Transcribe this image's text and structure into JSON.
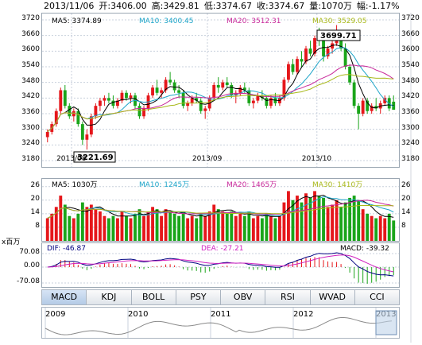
{
  "header": {
    "date": "2013/11/06",
    "open": "开:3406.00",
    "high": "高:3429.81",
    "low": "低:3374.67",
    "close": "收:3374.67",
    "volume": "量:1070万",
    "change": "幅:-1.17%"
  },
  "colors": {
    "up": "#e5171b",
    "down": "#1aa51a",
    "ma5": "#000000",
    "ma10": "#1ca4c8",
    "ma20": "#c8289a",
    "ma30": "#a8b818",
    "dif": "#000080",
    "dea": "#d020c0",
    "grid": "#c8d0dc"
  },
  "main": {
    "legend": {
      "ma5": "MA5: 3374.89",
      "ma10": "MA10: 3400.45",
      "ma20": "MA20: 3512.31",
      "ma30": "MA30: 3529.05"
    },
    "y_ticks": [
      "3720",
      "3660",
      "3600",
      "3540",
      "3480",
      "3420",
      "3360",
      "3300",
      "3240",
      "3180"
    ],
    "x_labels": [
      "2013/08",
      "2013/09",
      "2013/10"
    ],
    "high_label": "3699.71",
    "low_label": "3221.69"
  },
  "volume": {
    "legend": {
      "ma5": "MA5: 1030万",
      "ma10": "MA10: 1245万",
      "ma20": "MA20: 1465万",
      "ma30": "MA30: 1410万"
    },
    "y_ticks": [
      "26",
      "20",
      "14",
      "8"
    ]
  },
  "macd": {
    "unit": "x百万",
    "legend": {
      "dif": "DIF: -46.87",
      "dea": "DEA: -27.21",
      "macd": "MACD: -39.32"
    },
    "y_ticks": [
      "70.08",
      "0.00",
      "-70.08"
    ]
  },
  "tabs": [
    "MACD",
    "KDJ",
    "BOLL",
    "PSY",
    "OBV",
    "RSI",
    "WVAD",
    "CCI"
  ],
  "overview": {
    "years": [
      "2009",
      "2010",
      "2011",
      "2012",
      "2013"
    ]
  },
  "chart_data": {
    "type": "candlestick",
    "ylim": [
      3180,
      3720
    ],
    "x_labels": [
      "2013/08",
      "2013/09",
      "2013/10"
    ],
    "candles": [
      [
        3270,
        3300,
        3250,
        3290
      ],
      [
        3290,
        3330,
        3280,
        3320
      ],
      [
        3320,
        3380,
        3310,
        3370
      ],
      [
        3370,
        3460,
        3360,
        3450
      ],
      [
        3450,
        3470,
        3380,
        3390
      ],
      [
        3390,
        3400,
        3340,
        3350
      ],
      [
        3350,
        3380,
        3330,
        3370
      ],
      [
        3370,
        3380,
        3310,
        3320
      ],
      [
        3320,
        3330,
        3240,
        3260
      ],
      [
        3260,
        3300,
        3222,
        3280
      ],
      [
        3280,
        3360,
        3270,
        3350
      ],
      [
        3350,
        3400,
        3340,
        3390
      ],
      [
        3390,
        3420,
        3370,
        3410
      ],
      [
        3410,
        3430,
        3390,
        3420
      ],
      [
        3420,
        3440,
        3400,
        3410
      ],
      [
        3410,
        3430,
        3380,
        3390
      ],
      [
        3390,
        3420,
        3380,
        3410
      ],
      [
        3410,
        3450,
        3400,
        3440
      ],
      [
        3440,
        3450,
        3410,
        3420
      ],
      [
        3420,
        3440,
        3400,
        3430
      ],
      [
        3430,
        3440,
        3380,
        3390
      ],
      [
        3390,
        3400,
        3340,
        3350
      ],
      [
        3350,
        3390,
        3340,
        3380
      ],
      [
        3380,
        3440,
        3370,
        3430
      ],
      [
        3430,
        3470,
        3420,
        3460
      ],
      [
        3460,
        3490,
        3430,
        3440
      ],
      [
        3440,
        3460,
        3420,
        3450
      ],
      [
        3450,
        3500,
        3440,
        3490
      ],
      [
        3490,
        3520,
        3470,
        3480
      ],
      [
        3480,
        3490,
        3440,
        3450
      ],
      [
        3450,
        3470,
        3420,
        3440
      ],
      [
        3440,
        3450,
        3380,
        3390
      ],
      [
        3390,
        3410,
        3370,
        3400
      ],
      [
        3400,
        3430,
        3390,
        3420
      ],
      [
        3420,
        3440,
        3400,
        3410
      ],
      [
        3410,
        3420,
        3360,
        3370
      ],
      [
        3370,
        3390,
        3340,
        3380
      ],
      [
        3380,
        3430,
        3370,
        3420
      ],
      [
        3420,
        3480,
        3410,
        3470
      ],
      [
        3470,
        3500,
        3440,
        3460
      ],
      [
        3460,
        3490,
        3450,
        3480
      ],
      [
        3480,
        3500,
        3460,
        3470
      ],
      [
        3470,
        3480,
        3420,
        3430
      ],
      [
        3430,
        3450,
        3400,
        3440
      ],
      [
        3440,
        3470,
        3430,
        3460
      ],
      [
        3460,
        3480,
        3440,
        3450
      ],
      [
        3450,
        3460,
        3390,
        3400
      ],
      [
        3400,
        3420,
        3380,
        3410
      ],
      [
        3410,
        3440,
        3400,
        3430
      ],
      [
        3430,
        3450,
        3410,
        3420
      ],
      [
        3420,
        3430,
        3380,
        3390
      ],
      [
        3390,
        3430,
        3380,
        3420
      ],
      [
        3420,
        3440,
        3390,
        3400
      ],
      [
        3400,
        3430,
        3390,
        3420
      ],
      [
        3420,
        3500,
        3410,
        3490
      ],
      [
        3490,
        3560,
        3480,
        3550
      ],
      [
        3550,
        3570,
        3510,
        3520
      ],
      [
        3520,
        3580,
        3510,
        3570
      ],
      [
        3570,
        3600,
        3540,
        3560
      ],
      [
        3560,
        3620,
        3550,
        3610
      ],
      [
        3610,
        3640,
        3580,
        3590
      ],
      [
        3590,
        3660,
        3580,
        3650
      ],
      [
        3650,
        3690,
        3620,
        3640
      ],
      [
        3640,
        3660,
        3560,
        3580
      ],
      [
        3580,
        3620,
        3570,
        3610
      ],
      [
        3610,
        3640,
        3590,
        3630
      ],
      [
        3630,
        3700,
        3620,
        3660
      ],
      [
        3660,
        3670,
        3600,
        3610
      ],
      [
        3610,
        3630,
        3530,
        3540
      ],
      [
        3540,
        3550,
        3470,
        3480
      ],
      [
        3480,
        3490,
        3380,
        3390
      ],
      [
        3390,
        3400,
        3300,
        3360
      ],
      [
        3360,
        3420,
        3350,
        3410
      ],
      [
        3410,
        3420,
        3360,
        3370
      ],
      [
        3370,
        3400,
        3360,
        3390
      ],
      [
        3390,
        3420,
        3370,
        3380
      ],
      [
        3380,
        3410,
        3360,
        3400
      ],
      [
        3400,
        3430,
        3390,
        3420
      ],
      [
        3420,
        3430,
        3370,
        3380
      ],
      [
        3406,
        3430,
        3375,
        3375
      ]
    ],
    "volume_ylim": [
      8,
      26
    ],
    "volumes": [
      12,
      14,
      17,
      22,
      18,
      13,
      12,
      14,
      19,
      17,
      18,
      16,
      15,
      13,
      12,
      13,
      12,
      15,
      13,
      12,
      14,
      16,
      13,
      15,
      17,
      16,
      13,
      16,
      15,
      14,
      13,
      15,
      12,
      13,
      12,
      14,
      13,
      15,
      18,
      16,
      15,
      14,
      15,
      13,
      14,
      13,
      15,
      12,
      13,
      12,
      14,
      13,
      12,
      13,
      19,
      24,
      20,
      22,
      19,
      23,
      21,
      24,
      22,
      21,
      17,
      18,
      20,
      17,
      19,
      21,
      22,
      20,
      16,
      14,
      13,
      12,
      13,
      12,
      14,
      11
    ],
    "macd_ylim": [
      -70.08,
      70.08
    ]
  }
}
